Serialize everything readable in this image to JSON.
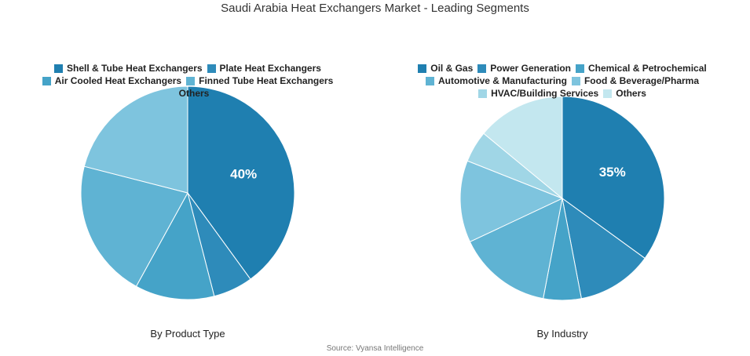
{
  "title": "Saudi Arabia Heat Exchangers Market - Leading Segments",
  "source": "Source: Vyansa Intelligence",
  "chart_data": [
    {
      "type": "pie",
      "caption": "By Product Type",
      "categories": [
        "Shell & Tube Heat Exchangers",
        "Plate Heat Exchangers",
        "Air Cooled Heat Exchangers",
        "Finned Tube Heat Exchangers",
        "Others"
      ],
      "values": [
        40,
        6,
        12,
        21,
        21
      ],
      "value_labels": [
        "40%",
        null,
        null,
        null,
        null
      ],
      "colors": [
        "#1f7fb0",
        "#2e8bba",
        "#45a3c8",
        "#5fb3d3",
        "#7ec4de"
      ]
    },
    {
      "type": "pie",
      "caption": "By Industry",
      "categories": [
        "Oil & Gas",
        "Power Generation",
        "Chemical & Petrochemical",
        "Automotive & Manufacturing",
        "Food & Beverage/Pharma",
        "HVAC/Building Services",
        "Others"
      ],
      "values": [
        35,
        12,
        6,
        15,
        13,
        5,
        14
      ],
      "value_labels": [
        "35%",
        null,
        null,
        null,
        null,
        null,
        null
      ],
      "colors": [
        "#1f7fb0",
        "#2e8bba",
        "#45a3c8",
        "#5fb3d3",
        "#7ec4de",
        "#a0d6e6",
        "#c3e7ef"
      ]
    }
  ]
}
